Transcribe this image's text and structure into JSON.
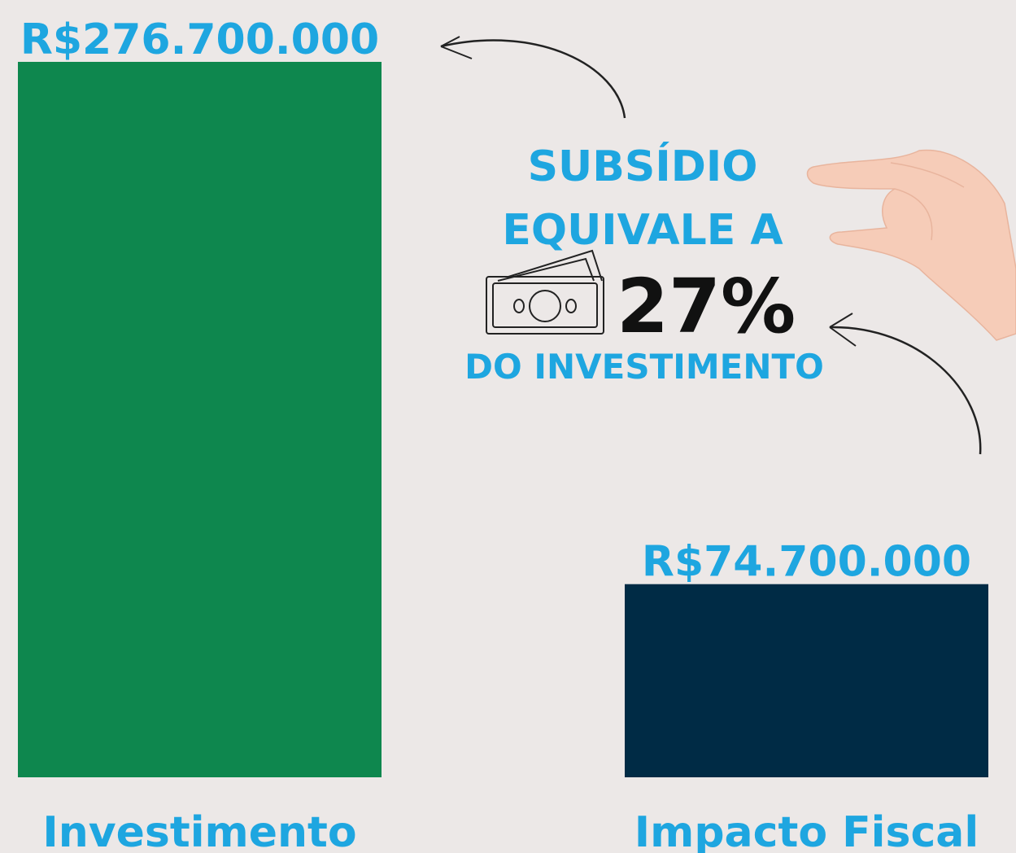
{
  "chart_data": {
    "type": "bar",
    "categories": [
      "Investimento",
      "Impacto Fiscal"
    ],
    "values": [
      276700000,
      74700000
    ],
    "value_labels": [
      "R$276.700.000",
      "R$74.700.000"
    ],
    "colors": [
      "#0e874e",
      "#002b45"
    ],
    "annotations": [
      "SUBSÍDIO",
      "EQUIVALE A",
      "27%",
      "DO INVESTIMENTO"
    ]
  }
}
